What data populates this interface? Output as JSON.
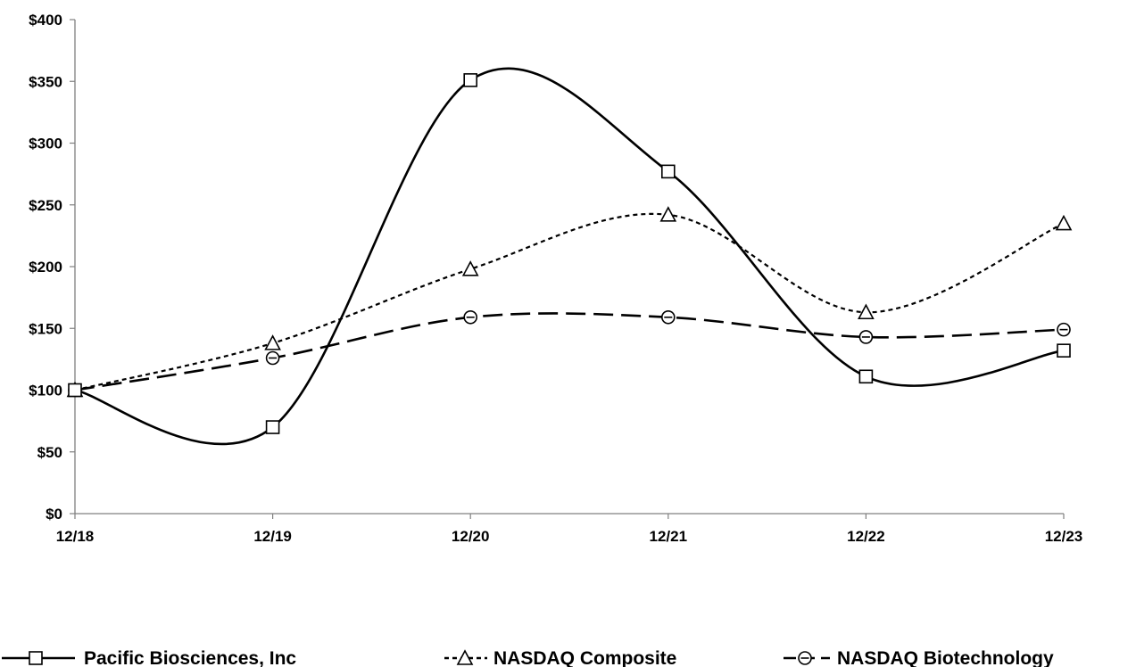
{
  "chart_data": {
    "type": "line",
    "title": "",
    "xlabel": "",
    "ylabel": "",
    "categories": [
      "12/18",
      "12/19",
      "12/20",
      "12/21",
      "12/22",
      "12/23"
    ],
    "y_ticks": [
      "$0",
      "$50",
      "$100",
      "$150",
      "$200",
      "$250",
      "$300",
      "$350",
      "$400"
    ],
    "ylim": [
      0,
      400
    ],
    "grid": false,
    "legend_placement": "bottom",
    "series": [
      {
        "name": "Pacific Biosciences, Inc",
        "values": [
          100,
          70,
          351,
          277,
          111,
          132
        ],
        "marker": "square",
        "dash": "solid",
        "color": "#000000"
      },
      {
        "name": "NASDAQ Composite",
        "values": [
          100,
          138,
          198,
          242,
          163,
          235
        ],
        "marker": "triangle",
        "dash": "dotted",
        "color": "#000000"
      },
      {
        "name": "NASDAQ Biotechnology",
        "values": [
          100,
          126,
          159,
          159,
          143,
          149
        ],
        "marker": "circle",
        "dash": "dashed",
        "color": "#000000"
      }
    ]
  }
}
